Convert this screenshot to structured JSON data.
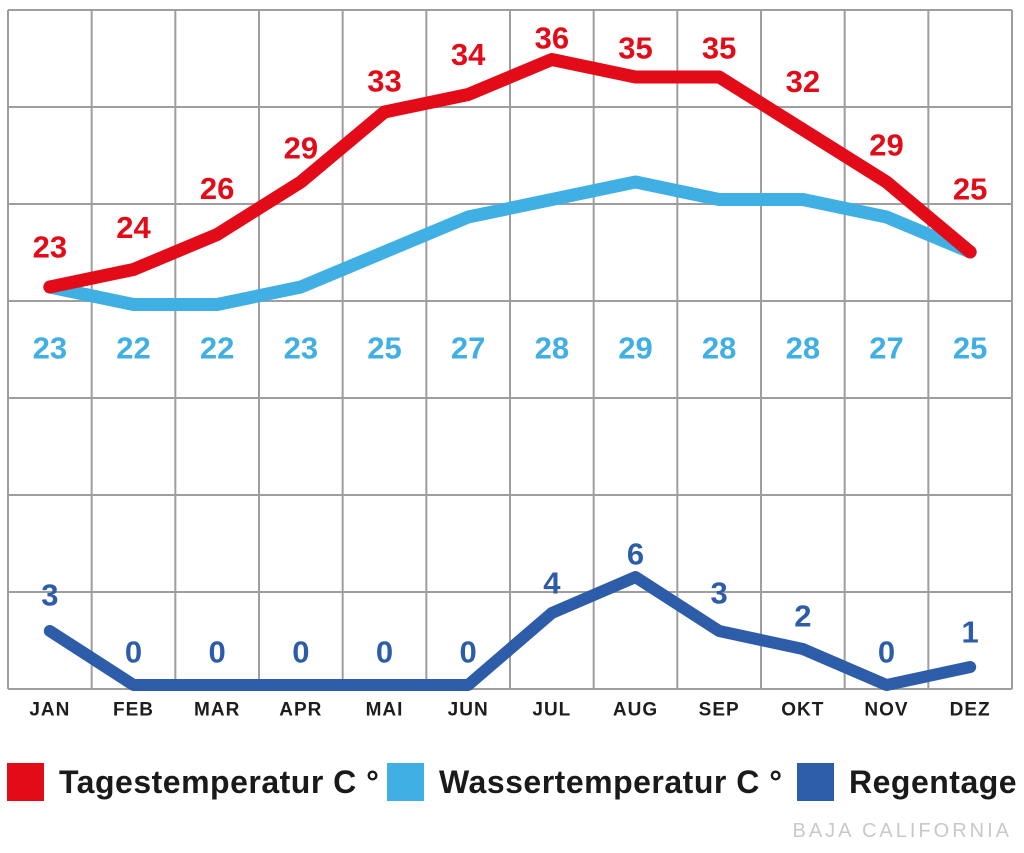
{
  "watermark": "BAJA CALIFORNIA",
  "legend": {
    "items": [
      {
        "label": "Tagestemperatur C °",
        "color": "#e30b18"
      },
      {
        "label": "Wassertemperatur C °",
        "color": "#3fafe4"
      },
      {
        "label": "Regentage",
        "color": "#2d5ca8"
      }
    ]
  },
  "chart_data": {
    "type": "line",
    "title": "",
    "categories": [
      "JAN",
      "FEB",
      "MAR",
      "APR",
      "MAI",
      "JUN",
      "JUL",
      "AUG",
      "SEP",
      "OKT",
      "NOV",
      "DEZ"
    ],
    "series": [
      {
        "name": "Tagestemperatur C °",
        "color": "#e30b18",
        "values": [
          23,
          24,
          26,
          29,
          33,
          34,
          36,
          35,
          35,
          32,
          29,
          25
        ]
      },
      {
        "name": "Wassertemperatur C °",
        "color": "#3fafe4",
        "values": [
          23,
          22,
          22,
          23,
          25,
          27,
          28,
          29,
          28,
          28,
          27,
          25
        ]
      },
      {
        "name": "Regentage",
        "color": "#2d5ca8",
        "values": [
          3,
          0,
          0,
          0,
          0,
          0,
          4,
          6,
          3,
          2,
          0,
          1
        ]
      }
    ],
    "xlabel": "",
    "ylabel": "",
    "grid": true,
    "grid_color": "#9e9e9e",
    "value_labels": true,
    "legend_position": "bottom"
  }
}
